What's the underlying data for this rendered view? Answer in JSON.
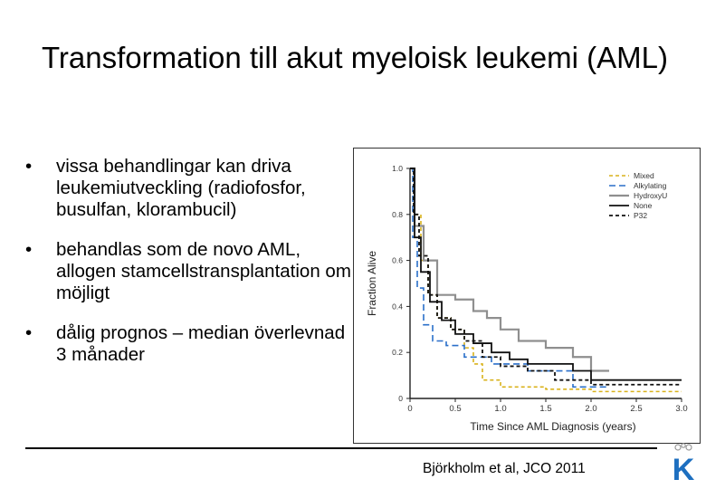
{
  "slide": {
    "title": "Transformation till akut myeloisk leukemi (AML)",
    "bullets": [
      {
        "marker": "•",
        "text": "vissa behandlingar kan driva leukemiutveckling (radiofosfor, busulfan, klorambucil)"
      },
      {
        "marker": "•",
        "text": "behandlas som de novo AML, allogen stamcellstransplantation om möjligt"
      },
      {
        "marker": "•",
        "text": "dålig prognos – median överlevnad 3 månader"
      }
    ],
    "citation": "Björkholm et al, JCO 2011",
    "logo_letter": "K",
    "accent_color": "#1d6fc0"
  },
  "chart_data": {
    "type": "line",
    "step": true,
    "xlabel": "Time Since AML Diagnosis (years)",
    "ylabel": "Fraction Alive",
    "xlim": [
      0,
      3.0
    ],
    "ylim": [
      0,
      1.0
    ],
    "xticks": [
      "0",
      "0.5",
      "1.0",
      "1.5",
      "2.0",
      "2.5",
      "3.0"
    ],
    "xtick_values": [
      0,
      0.5,
      1.0,
      1.5,
      2.0,
      2.5,
      3.0
    ],
    "yticks": [
      "0",
      "0.2",
      "0.4",
      "0.6",
      "0.8",
      "1.0"
    ],
    "ytick_values": [
      0,
      0.2,
      0.4,
      0.6,
      0.8,
      1.0
    ],
    "legend_position": "top-right",
    "series": [
      {
        "name": "Mixed",
        "color": "#d9b21c",
        "dash": "4,3",
        "width": 1.6,
        "x": [
          0,
          0.05,
          0.12,
          0.2,
          0.3,
          0.45,
          0.6,
          0.7,
          0.8,
          1.0,
          1.5,
          2.0,
          3.0
        ],
        "y": [
          1.0,
          0.8,
          0.6,
          0.45,
          0.35,
          0.3,
          0.22,
          0.15,
          0.08,
          0.05,
          0.04,
          0.03,
          0.03
        ]
      },
      {
        "name": "Alkylating",
        "color": "#2a6fc9",
        "dash": "7,4",
        "width": 1.6,
        "x": [
          0,
          0.03,
          0.08,
          0.15,
          0.25,
          0.4,
          0.6,
          0.9,
          1.3,
          1.8,
          2.2
        ],
        "y": [
          1.0,
          0.7,
          0.48,
          0.32,
          0.25,
          0.23,
          0.18,
          0.15,
          0.12,
          0.05,
          0.05
        ]
      },
      {
        "name": "HydroxyU",
        "color": "#8f8f8f",
        "dash": "",
        "width": 2.2,
        "x": [
          0,
          0.05,
          0.15,
          0.3,
          0.5,
          0.7,
          0.85,
          1.0,
          1.2,
          1.5,
          1.8,
          2.0,
          2.2
        ],
        "y": [
          1.0,
          0.75,
          0.6,
          0.45,
          0.43,
          0.38,
          0.35,
          0.3,
          0.25,
          0.22,
          0.18,
          0.12,
          0.12
        ]
      },
      {
        "name": "None",
        "color": "#111111",
        "dash": "",
        "width": 1.8,
        "x": [
          0,
          0.05,
          0.12,
          0.22,
          0.35,
          0.5,
          0.7,
          0.9,
          1.1,
          1.3,
          1.6,
          1.8,
          2.0,
          3.0
        ],
        "y": [
          1.0,
          0.7,
          0.55,
          0.42,
          0.34,
          0.28,
          0.24,
          0.2,
          0.17,
          0.15,
          0.15,
          0.12,
          0.08,
          0.08
        ]
      },
      {
        "name": "P32",
        "color": "#111111",
        "dash": "4,3",
        "width": 1.8,
        "x": [
          0,
          0.04,
          0.1,
          0.2,
          0.3,
          0.45,
          0.6,
          0.8,
          1.0,
          1.3,
          1.6,
          2.0,
          3.0
        ],
        "y": [
          1.0,
          0.8,
          0.62,
          0.45,
          0.35,
          0.3,
          0.25,
          0.18,
          0.14,
          0.12,
          0.08,
          0.06,
          0.06
        ]
      }
    ]
  }
}
